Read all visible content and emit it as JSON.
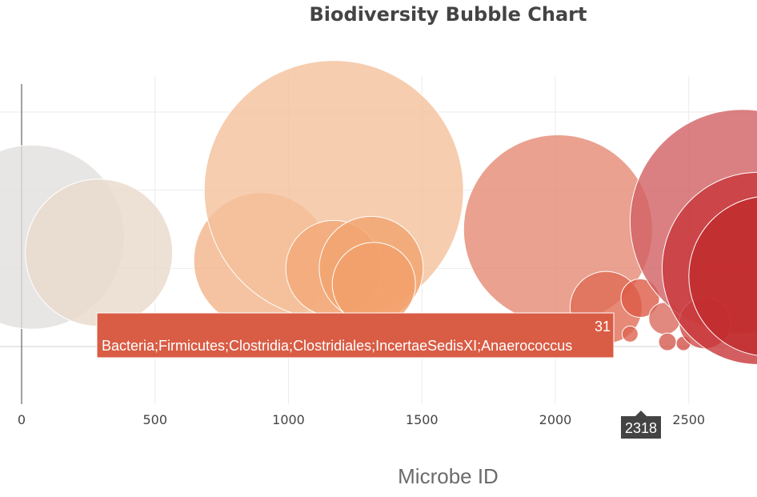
{
  "chart_data": {
    "type": "scatter",
    "title": "Biodiversity Bubble Chart",
    "xlabel": "Microbe ID",
    "ylabel": "",
    "xlim": [
      -80,
      2760
    ],
    "ylim": [
      -15,
      215
    ],
    "x_ticks": [
      0,
      500,
      1000,
      1500,
      2000,
      2500
    ],
    "grid": true,
    "colorscale": "warm sequential (light gray to red)",
    "bubbles": [
      {
        "x": 40,
        "y": 70,
        "size": 115,
        "color": "#e2e0de"
      },
      {
        "x": 290,
        "y": 60,
        "size": 92,
        "color": "#e9d9cc"
      },
      {
        "x": 900,
        "y": 55,
        "size": 85,
        "color": "#f3b489"
      },
      {
        "x": 1170,
        "y": 100,
        "size": 162,
        "color": "#f4c09b"
      },
      {
        "x": 1170,
        "y": 50,
        "size": 60,
        "color": "#f2a877"
      },
      {
        "x": 1310,
        "y": 50,
        "size": 65,
        "color": "#f1a46f"
      },
      {
        "x": 1320,
        "y": 40,
        "size": 52,
        "color": "#f2a06a"
      },
      {
        "x": 2010,
        "y": 75,
        "size": 118,
        "color": "#e58a73"
      },
      {
        "x": 2190,
        "y": 25,
        "size": 45,
        "color": "#e06d55"
      },
      {
        "x": 2318,
        "y": 31,
        "size": 24,
        "color": "#dd5a46"
      },
      {
        "x": 2280,
        "y": 8,
        "size": 10,
        "color": "#dd6450"
      },
      {
        "x": 2410,
        "y": 18,
        "size": 20,
        "color": "#d96a5f"
      },
      {
        "x": 2420,
        "y": 3,
        "size": 11,
        "color": "#d45a50"
      },
      {
        "x": 2480,
        "y": 2,
        "size": 9,
        "color": "#d45048"
      },
      {
        "x": 2700,
        "y": 80,
        "size": 140,
        "color": "#d26063"
      },
      {
        "x": 2560,
        "y": 15,
        "size": 32,
        "color": "#cf4a45"
      },
      {
        "x": 2760,
        "y": 50,
        "size": 120,
        "color": "#c8363a"
      },
      {
        "x": 2800,
        "y": 45,
        "size": 100,
        "color": "#c02a2d"
      }
    ],
    "hover": {
      "value": "31",
      "label": "Bacteria;Firmicutes;Clostridia;Clostridiales;IncertaeSedisXI;Anaerococcus",
      "x_readout": "2318",
      "color": "#d95c45"
    }
  }
}
